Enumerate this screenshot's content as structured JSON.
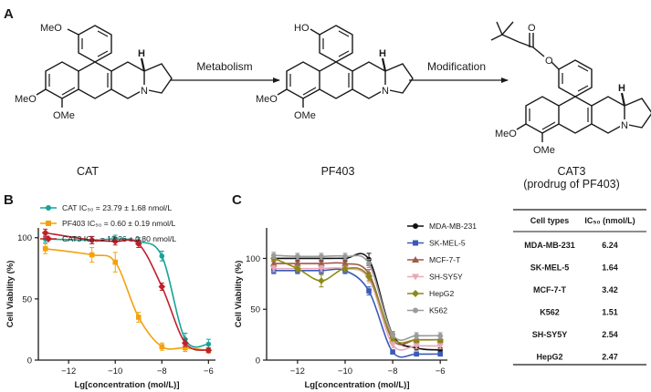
{
  "panel_a": {
    "letter": "A",
    "compounds": [
      {
        "name": "CAT",
        "substituents": [
          "MeO",
          "MeO",
          "OMe"
        ]
      },
      {
        "name": "PF403",
        "substituents": [
          "HO",
          "MeO",
          "OMe"
        ]
      },
      {
        "name": "CAT3",
        "subtitle": "(prodrug of PF403)",
        "substituents": [
          "MeO",
          "OMe"
        ]
      }
    ],
    "stereo_label": "H",
    "nitrogen_label": "N",
    "ester_oxygen_labels": [
      "O",
      "O"
    ],
    "arrows": [
      "Metabolism",
      "Modification"
    ]
  },
  "chart_data": [
    {
      "panel": "B",
      "type": "line",
      "xlabel": "Lg[concentration (mol/L)]",
      "ylabel": "Cell Viability (%)",
      "xlim": [
        -13.3,
        -5.7
      ],
      "ylim": [
        0,
        108
      ],
      "xticks": [
        -12,
        -10,
        -8,
        -6
      ],
      "yticks": [
        0,
        50,
        100
      ],
      "x": [
        -13,
        -11,
        -10,
        -9,
        -8,
        -7,
        -6
      ],
      "series": [
        {
          "name": "CAT IC₅₀ = 23.79 ± 1.68 nmol/L",
          "color": "#17a398",
          "marker": "circle",
          "values": [
            99,
            98,
            99,
            97,
            85,
            17,
            13
          ],
          "err": [
            3,
            3,
            3,
            3,
            4,
            5,
            4
          ]
        },
        {
          "name": "PF403 IC₅₀ = 0.60 ± 0.19 nmol/L",
          "color": "#f2a20c",
          "marker": "square",
          "values": [
            91,
            86,
            80,
            35,
            11,
            10,
            8
          ],
          "err": [
            4,
            6,
            8,
            4,
            3,
            3,
            2
          ]
        },
        {
          "name": "CAT3 IC₅₀ = 12.26 ± 0.80 nmol/L",
          "color": "#c0202a",
          "marker": "diamond",
          "values": [
            104,
            98,
            97,
            95,
            60,
            14,
            8
          ],
          "err": [
            3,
            3,
            3,
            3,
            3,
            3,
            2
          ]
        }
      ]
    },
    {
      "panel": "C",
      "type": "line",
      "xlabel": "Lg[concentration (mol/L)]",
      "ylabel": "Cell Viability (%)",
      "xlim": [
        -13.3,
        -5.7
      ],
      "ylim": [
        0,
        130
      ],
      "xticks": [
        -12,
        -10,
        -8,
        -6
      ],
      "yticks": [
        0,
        50,
        100
      ],
      "x": [
        -13,
        -12,
        -11,
        -10,
        -9,
        -8,
        -7,
        -6
      ],
      "series": [
        {
          "name": "MDA-MB-231",
          "color": "#111111",
          "marker": "circle",
          "values": [
            100,
            100,
            100,
            100,
            99,
            25,
            12,
            10
          ],
          "err": [
            3,
            3,
            3,
            3,
            6,
            3,
            2,
            2
          ]
        },
        {
          "name": "SK-MEL-5",
          "color": "#3a5ab8",
          "marker": "square",
          "values": [
            88,
            88,
            88,
            88,
            68,
            8,
            6,
            6
          ],
          "err": [
            3,
            3,
            3,
            3,
            4,
            2,
            2,
            2
          ]
        },
        {
          "name": "MCF-7-T",
          "color": "#a0584a",
          "marker": "triangle-up",
          "values": [
            95,
            95,
            95,
            95,
            85,
            20,
            20,
            20
          ],
          "err": [
            3,
            3,
            3,
            3,
            4,
            3,
            3,
            3
          ]
        },
        {
          "name": "SH-SY5Y",
          "color": "#e7a9b5",
          "marker": "triangle-down",
          "values": [
            90,
            90,
            90,
            90,
            80,
            15,
            14,
            14
          ],
          "err": [
            3,
            3,
            3,
            3,
            4,
            3,
            3,
            3
          ]
        },
        {
          "name": "HepG2",
          "color": "#8c8a16",
          "marker": "diamond",
          "values": [
            100,
            90,
            78,
            90,
            82,
            22,
            20,
            20
          ],
          "err": [
            3,
            3,
            6,
            3,
            4,
            3,
            3,
            3
          ]
        },
        {
          "name": "K562",
          "color": "#9b9b9b",
          "marker": "circle",
          "values": [
            103,
            102,
            102,
            102,
            95,
            25,
            24,
            24
          ],
          "err": [
            3,
            3,
            3,
            3,
            4,
            3,
            3,
            3
          ]
        }
      ]
    },
    {
      "type": "table",
      "columns": [
        "Cell types",
        "IC₅₀ (nmol/L)"
      ],
      "rows": [
        [
          "MDA-MB-231",
          "6.24"
        ],
        [
          "SK-MEL-5",
          "1.64"
        ],
        [
          "MCF-7-T",
          "3.42"
        ],
        [
          "K562",
          "1.51"
        ],
        [
          "SH-SY5Y",
          "2.54"
        ],
        [
          "HepG2",
          "2.47"
        ]
      ]
    }
  ]
}
